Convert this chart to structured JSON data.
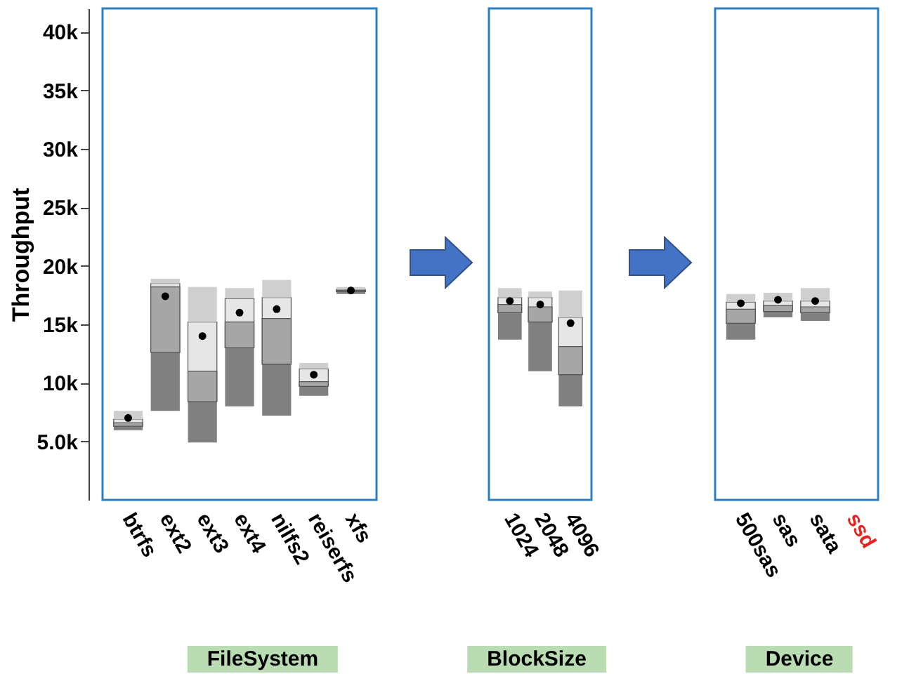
{
  "chart_data": [
    {
      "type": "box",
      "xlabel": "FileSystem",
      "ylabel": "Throughput",
      "categories": [
        "btrfs",
        "ext2",
        "ext3",
        "ext4",
        "nilfs2",
        "reiserfs",
        "xfs"
      ],
      "ylim": [
        0,
        42000
      ],
      "yticks": [
        {
          "value": 5000,
          "label": "5.0k"
        },
        {
          "value": 10000,
          "label": "10k"
        },
        {
          "value": 15000,
          "label": "15k"
        },
        {
          "value": 20000,
          "label": "20k"
        },
        {
          "value": 25000,
          "label": "25k"
        },
        {
          "value": 30000,
          "label": "30k"
        },
        {
          "value": 35000,
          "label": "35k"
        },
        {
          "value": 40000,
          "label": "40k"
        }
      ],
      "boxes": [
        {
          "low": 5950,
          "q1": 6300,
          "median": 6600,
          "q3": 6900,
          "high": 7600,
          "mean": 7000
        },
        {
          "low": 7600,
          "q1": 12600,
          "median": 18200,
          "q3": 18500,
          "high": 18900,
          "mean": 17400
        },
        {
          "low": 4900,
          "q1": 8400,
          "median": 11000,
          "q3": 15200,
          "high": 18200,
          "mean": 14000
        },
        {
          "low": 8000,
          "q1": 13000,
          "median": 15200,
          "q3": 17200,
          "high": 18100,
          "mean": 16000
        },
        {
          "low": 7200,
          "q1": 11600,
          "median": 15500,
          "q3": 17300,
          "high": 18800,
          "mean": 16300
        },
        {
          "low": 8900,
          "q1": 9700,
          "median": 10100,
          "q3": 11200,
          "high": 11700,
          "mean": 10700
        },
        {
          "low": 17600,
          "q1": 17800,
          "median": 17900,
          "q3": 18000,
          "high": 18200,
          "mean": 17900
        }
      ]
    },
    {
      "type": "box",
      "xlabel": "BlockSize",
      "categories": [
        "1024",
        "2048",
        "4096"
      ],
      "ylim": [
        0,
        42000
      ],
      "tick_labels": "x",
      "boxes": [
        {
          "low": 13700,
          "q1": 16000,
          "median": 16700,
          "q3": 17300,
          "high": 18100,
          "mean": 17000
        },
        {
          "low": 11000,
          "q1": 15200,
          "median": 16500,
          "q3": 17300,
          "high": 17800,
          "mean": 16700
        },
        {
          "low": 8000,
          "q1": 10700,
          "median": 13100,
          "q3": 15600,
          "high": 17900,
          "mean": 15100
        }
      ]
    },
    {
      "type": "box",
      "xlabel": "Device",
      "categories": [
        "500sas",
        "sas",
        "sata",
        "ssd"
      ],
      "ylim": [
        0,
        42000
      ],
      "tick_labels": "x",
      "boxes": [
        {
          "low": 13700,
          "q1": 15100,
          "median": 16300,
          "q3": 16900,
          "high": 17600,
          "mean": 16800
        },
        {
          "low": 15600,
          "q1": 16100,
          "median": 16600,
          "q3": 17000,
          "high": 17700,
          "mean": 17100
        },
        {
          "low": 15300,
          "q1": 16000,
          "median": 16500,
          "q3": 17000,
          "high": 18100,
          "mean": 17000
        },
        null
      ]
    }
  ]
}
